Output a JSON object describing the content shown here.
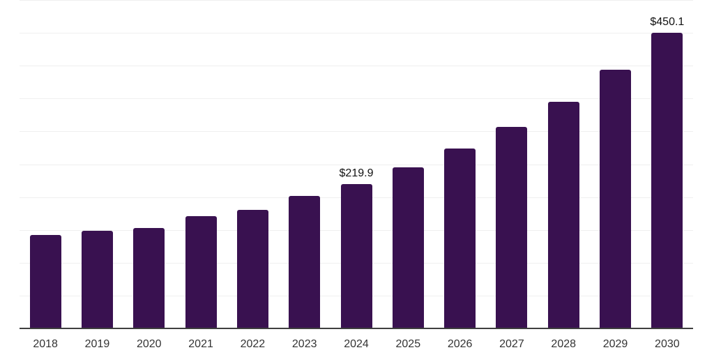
{
  "chart_data": {
    "type": "bar",
    "title": "",
    "xlabel": "",
    "ylabel": "",
    "categories": [
      "2018",
      "2019",
      "2020",
      "2021",
      "2022",
      "2023",
      "2024",
      "2025",
      "2026",
      "2027",
      "2028",
      "2029",
      "2030"
    ],
    "values": [
      142.4,
      148.7,
      153.0,
      171.0,
      180.6,
      201.8,
      219.9,
      245.4,
      274.1,
      307.0,
      345.3,
      394.1,
      450.1
    ],
    "data_labels": [
      {
        "category": "2024",
        "text": "$219.9"
      },
      {
        "category": "2030",
        "text": "$450.1"
      }
    ],
    "ylim": [
      0,
      500
    ],
    "grid_step": 50,
    "grid": "horizontal-only",
    "legend": "none",
    "bar_color": "#391150",
    "background_color": "#ffffff",
    "gridline_color": "#efefef",
    "axis_line_color": "#3f3f3f",
    "tick_label_color": "#333333",
    "data_label_color": "#111111"
  }
}
